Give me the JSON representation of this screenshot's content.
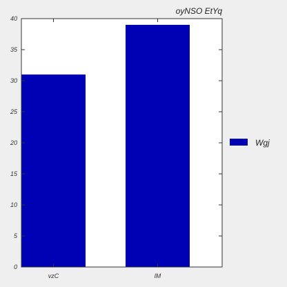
{
  "chart_data": {
    "type": "bar",
    "title": "oyNSO  EtYq",
    "xlabel": "",
    "ylabel": "",
    "categories": [
      "vzC",
      "lM"
    ],
    "series": [
      {
        "name": "Wgj",
        "values": [
          31,
          39
        ],
        "color": "#0000b4"
      }
    ],
    "ylim": [
      0,
      40
    ],
    "yticks": [
      0,
      5,
      10,
      15,
      20,
      25,
      30,
      35,
      40
    ],
    "grid": false,
    "legend_position": "right"
  },
  "colors": {
    "background": "#efefef",
    "plot_area": "#ffffff",
    "axis": "#333333"
  }
}
